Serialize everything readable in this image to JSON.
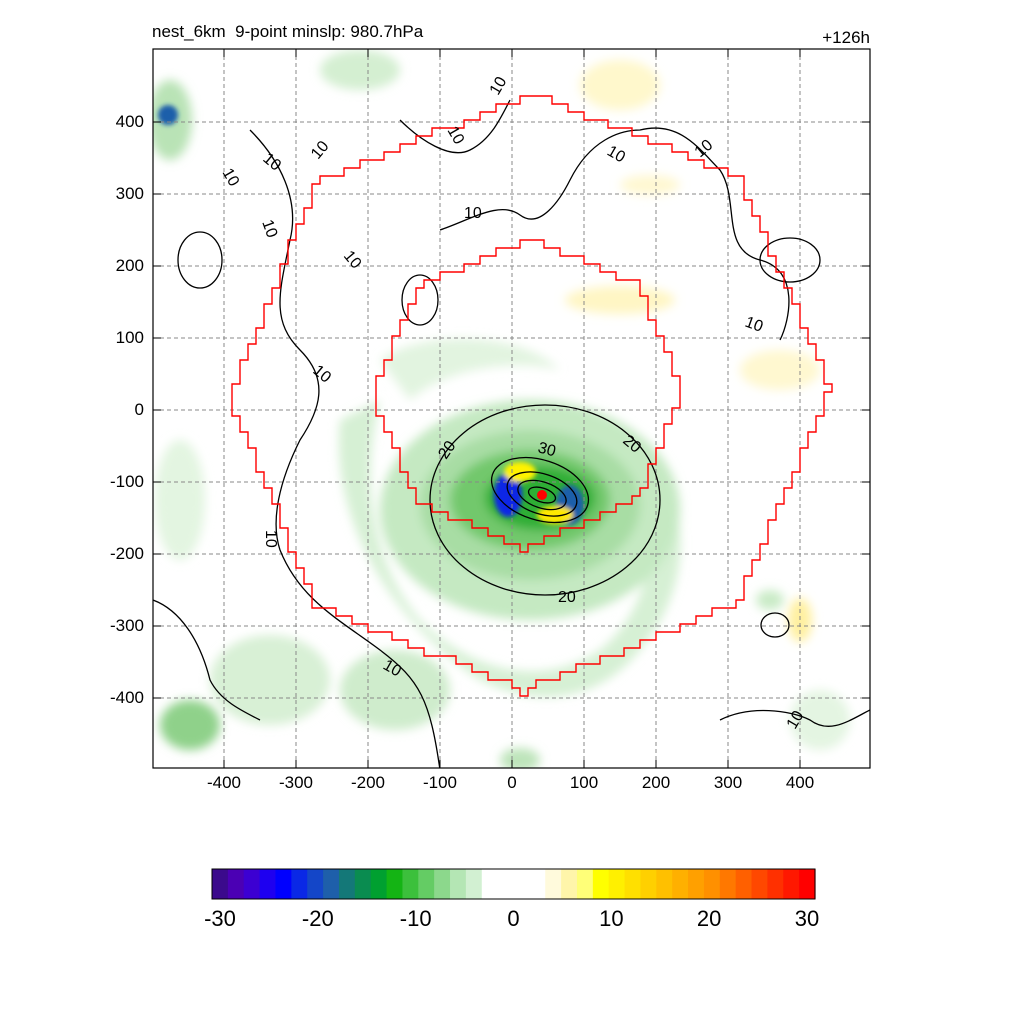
{
  "header": {
    "title": "nest_6km  9-point minslp: 980.7hPa",
    "forecast_hour": "+126h"
  },
  "map": {
    "x_ticks": [
      "-400",
      "-300",
      "-200",
      "-100",
      "0",
      "100",
      "200",
      "300",
      "400"
    ],
    "y_ticks": [
      "400",
      "300",
      "200",
      "100",
      "0",
      "-100",
      "-200",
      "-300",
      "-400"
    ],
    "contour_labels": {
      "ten": "10",
      "twenty": "20",
      "thirty": "30"
    },
    "colors": {
      "nest_boundary": "#ff0000",
      "center_marker": "#ff0000",
      "contour": "#000000",
      "grid": "#888888"
    }
  },
  "colorbar": {
    "labels": [
      "-30",
      "-20",
      "-10",
      "0",
      "10",
      "20",
      "30"
    ],
    "colors": [
      "#3b0a8c",
      "#4b00b4",
      "#3c00d2",
      "#1e00f0",
      "#0000ff",
      "#0a28e6",
      "#1446c8",
      "#1e5faa",
      "#147878",
      "#0a8c50",
      "#00a030",
      "#14b414",
      "#3cc03c",
      "#64cc64",
      "#8cd88c",
      "#b4e6b4",
      "#d2f0d2",
      "#ffffff",
      "#ffffff",
      "#ffffff",
      "#ffffff",
      "#fffadc",
      "#fff5aa",
      "#ffff78",
      "#ffff00",
      "#fff000",
      "#ffe000",
      "#ffd000",
      "#ffc000",
      "#ffb000",
      "#ffa000",
      "#ff9000",
      "#ff7800",
      "#ff6000",
      "#ff4800",
      "#ff3000",
      "#ff1800",
      "#ff0000"
    ]
  }
}
